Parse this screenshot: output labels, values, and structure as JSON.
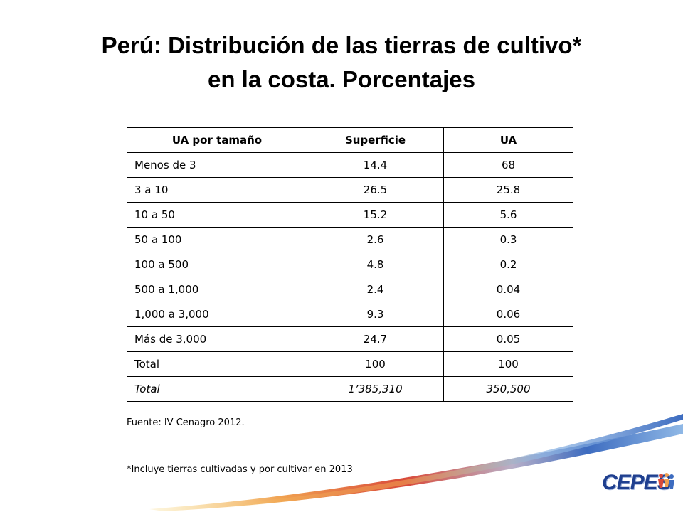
{
  "slide": {
    "title_line1": "Perú: Distribución de las tierras de cultivo*",
    "title_line2": "en la costa. Porcentajes"
  },
  "table": {
    "headers": [
      "UA por tamaño",
      "Superficie",
      "UA"
    ],
    "rows": [
      [
        "Menos de 3",
        "14.4",
        "68"
      ],
      [
        "3 a 10",
        "26.5",
        "25.8"
      ],
      [
        "10 a 50",
        "15.2",
        "5.6"
      ],
      [
        "50 a 100",
        "2.6",
        "0.3"
      ],
      [
        "100 a 500",
        "4.8",
        "0.2"
      ],
      [
        "500 a 1,000",
        "2.4",
        "0.04"
      ],
      [
        "1,000 a 3,000",
        "9.3",
        "0.06"
      ],
      [
        "Más de 3,000",
        "24.7",
        "0.05"
      ],
      [
        "Total",
        "100",
        "100"
      ],
      [
        "Total",
        "1’385,310",
        "350,500"
      ]
    ]
  },
  "notes": {
    "source": "Fuente: IV Cenagro 2012.",
    "footnote": "*Incluye tierras cultivadas y por cultivar en 2013"
  },
  "logo": {
    "text": "CEPES"
  },
  "colors": {
    "swoosh_blue": "#3d6cc0",
    "swoosh_light_blue": "#8fb8e6",
    "swoosh_red": "#d94a3a",
    "swoosh_orange": "#f0a050",
    "swoosh_yellow": "#f6d36a",
    "logo_blue": "#1f3f8f"
  }
}
